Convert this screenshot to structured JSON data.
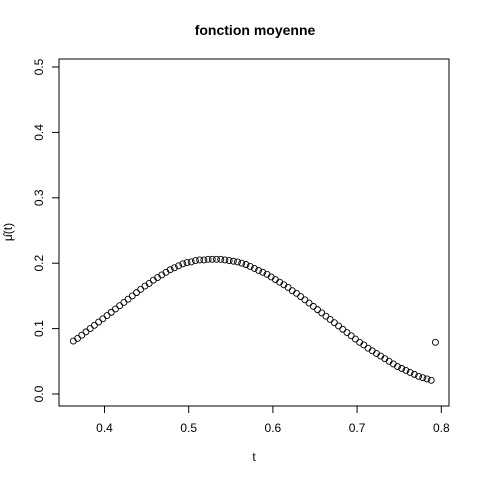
{
  "chart_data": {
    "type": "scatter",
    "title": "fonction moyenne",
    "xlabel": "t",
    "ylabel": "μ̂(t)",
    "xlim": [
      0.36,
      0.8
    ],
    "ylim": [
      0.0,
      0.5
    ],
    "xticks": [
      {
        "value": 0.4,
        "label": "0.4"
      },
      {
        "value": 0.5,
        "label": "0.5"
      },
      {
        "value": 0.6,
        "label": "0.6"
      },
      {
        "value": 0.7,
        "label": "0.7"
      },
      {
        "value": 0.8,
        "label": "0.8"
      }
    ],
    "yticks": [
      {
        "value": 0.0,
        "label": "0.0"
      },
      {
        "value": 0.1,
        "label": "0.1"
      },
      {
        "value": 0.2,
        "label": "0.2"
      },
      {
        "value": 0.3,
        "label": "0.3"
      },
      {
        "value": 0.4,
        "label": "0.4"
      },
      {
        "value": 0.5,
        "label": "0.5"
      }
    ],
    "grid": false,
    "marker": "open-circle",
    "series": [
      {
        "points": [
          [
            0.363,
            0.081
          ],
          [
            0.368,
            0.085
          ],
          [
            0.373,
            0.09
          ],
          [
            0.378,
            0.095
          ],
          [
            0.383,
            0.1
          ],
          [
            0.388,
            0.105
          ],
          [
            0.393,
            0.11
          ],
          [
            0.398,
            0.115
          ],
          [
            0.403,
            0.12
          ],
          [
            0.408,
            0.125
          ],
          [
            0.413,
            0.13
          ],
          [
            0.418,
            0.135
          ],
          [
            0.423,
            0.14
          ],
          [
            0.428,
            0.145
          ],
          [
            0.433,
            0.15
          ],
          [
            0.438,
            0.155
          ],
          [
            0.443,
            0.16
          ],
          [
            0.448,
            0.165
          ],
          [
            0.453,
            0.169
          ],
          [
            0.458,
            0.174
          ],
          [
            0.463,
            0.178
          ],
          [
            0.468,
            0.182
          ],
          [
            0.473,
            0.186
          ],
          [
            0.478,
            0.19
          ],
          [
            0.483,
            0.193
          ],
          [
            0.488,
            0.196
          ],
          [
            0.493,
            0.199
          ],
          [
            0.498,
            0.201
          ],
          [
            0.503,
            0.202
          ],
          [
            0.508,
            0.204
          ],
          [
            0.513,
            0.205
          ],
          [
            0.518,
            0.205
          ],
          [
            0.523,
            0.206
          ],
          [
            0.528,
            0.206
          ],
          [
            0.533,
            0.206
          ],
          [
            0.538,
            0.206
          ],
          [
            0.543,
            0.205
          ],
          [
            0.548,
            0.204
          ],
          [
            0.553,
            0.203
          ],
          [
            0.558,
            0.202
          ],
          [
            0.563,
            0.2
          ],
          [
            0.568,
            0.198
          ],
          [
            0.573,
            0.195
          ],
          [
            0.578,
            0.192
          ],
          [
            0.583,
            0.189
          ],
          [
            0.588,
            0.186
          ],
          [
            0.593,
            0.183
          ],
          [
            0.598,
            0.179
          ],
          [
            0.603,
            0.175
          ],
          [
            0.608,
            0.171
          ],
          [
            0.613,
            0.167
          ],
          [
            0.618,
            0.163
          ],
          [
            0.623,
            0.158
          ],
          [
            0.628,
            0.154
          ],
          [
            0.633,
            0.149
          ],
          [
            0.638,
            0.144
          ],
          [
            0.643,
            0.139
          ],
          [
            0.648,
            0.134
          ],
          [
            0.653,
            0.129
          ],
          [
            0.658,
            0.124
          ],
          [
            0.663,
            0.119
          ],
          [
            0.668,
            0.114
          ],
          [
            0.673,
            0.109
          ],
          [
            0.678,
            0.104
          ],
          [
            0.683,
            0.099
          ],
          [
            0.688,
            0.094
          ],
          [
            0.693,
            0.089
          ],
          [
            0.698,
            0.084
          ],
          [
            0.703,
            0.079
          ],
          [
            0.708,
            0.075
          ],
          [
            0.713,
            0.07
          ],
          [
            0.718,
            0.066
          ],
          [
            0.723,
            0.062
          ],
          [
            0.728,
            0.058
          ],
          [
            0.733,
            0.054
          ],
          [
            0.738,
            0.05
          ],
          [
            0.743,
            0.046
          ],
          [
            0.748,
            0.042
          ],
          [
            0.753,
            0.039
          ],
          [
            0.758,
            0.036
          ],
          [
            0.763,
            0.033
          ],
          [
            0.768,
            0.03
          ],
          [
            0.773,
            0.027
          ],
          [
            0.778,
            0.025
          ],
          [
            0.783,
            0.023
          ],
          [
            0.788,
            0.021
          ],
          [
            0.793,
            0.079
          ]
        ]
      }
    ]
  }
}
